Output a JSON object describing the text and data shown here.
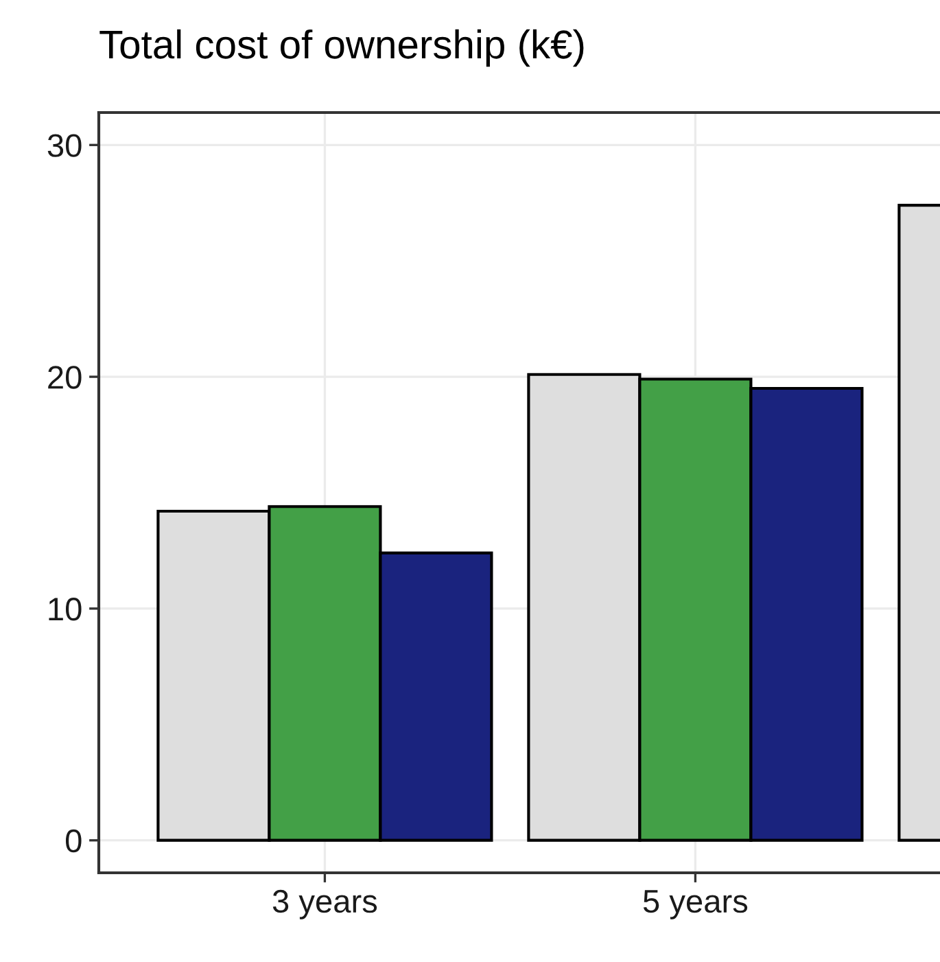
{
  "chart_data": {
    "type": "bar",
    "title": "Total cost of ownership (k€)",
    "categories": [
      "3 years",
      "5 years",
      null
    ],
    "series": [
      {
        "color": "#dedede",
        "values": [
          14.2,
          20.1,
          27.4
        ]
      },
      {
        "color": "#43a047",
        "values": [
          14.4,
          19.9,
          null
        ]
      },
      {
        "color": "#1a237e",
        "values": [
          12.4,
          19.5,
          null
        ]
      }
    ],
    "ylim": [
      -1.4,
      31.4
    ],
    "yticks": [
      0,
      10,
      20,
      30
    ],
    "grid": true
  }
}
